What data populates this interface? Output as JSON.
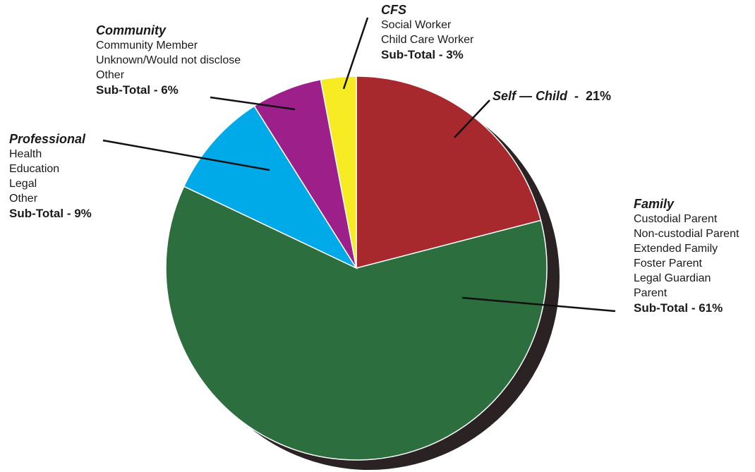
{
  "chart_data": {
    "type": "pie",
    "slices": [
      {
        "key": "self",
        "value": 21,
        "color": "#a8292d"
      },
      {
        "key": "family",
        "value": 61,
        "color": "#2d6e3f"
      },
      {
        "key": "professional",
        "value": 9,
        "color": "#00a9e8"
      },
      {
        "key": "community",
        "value": 6,
        "color": "#9c1f8a"
      },
      {
        "key": "cfs",
        "value": 3,
        "color": "#f7ec24"
      }
    ],
    "shadow_color": "#2b2323"
  },
  "labels": {
    "cfs": {
      "heading": "CFS",
      "items": [
        "Social Worker",
        "Child Care Worker"
      ],
      "subtotal": "Sub-Total  -  3%"
    },
    "community": {
      "heading": "Community",
      "items": [
        "Community Member",
        "Unknown/Would not disclose",
        "Other"
      ],
      "subtotal": "Sub-Total  -  6%"
    },
    "professional": {
      "heading": "Professional",
      "items": [
        "Health",
        "Education",
        "Legal",
        "Other"
      ],
      "subtotal": "Sub-Total  -  9%"
    },
    "self": {
      "heading": "Self — Child",
      "value": "  -  21%"
    },
    "family": {
      "heading": "Family",
      "items": [
        "Custodial Parent",
        "Non-custodial Parent",
        "Extended Family",
        "Foster Parent",
        "Legal Guardian",
        "Parent"
      ],
      "subtotal": "Sub-Total  -  61%"
    }
  }
}
